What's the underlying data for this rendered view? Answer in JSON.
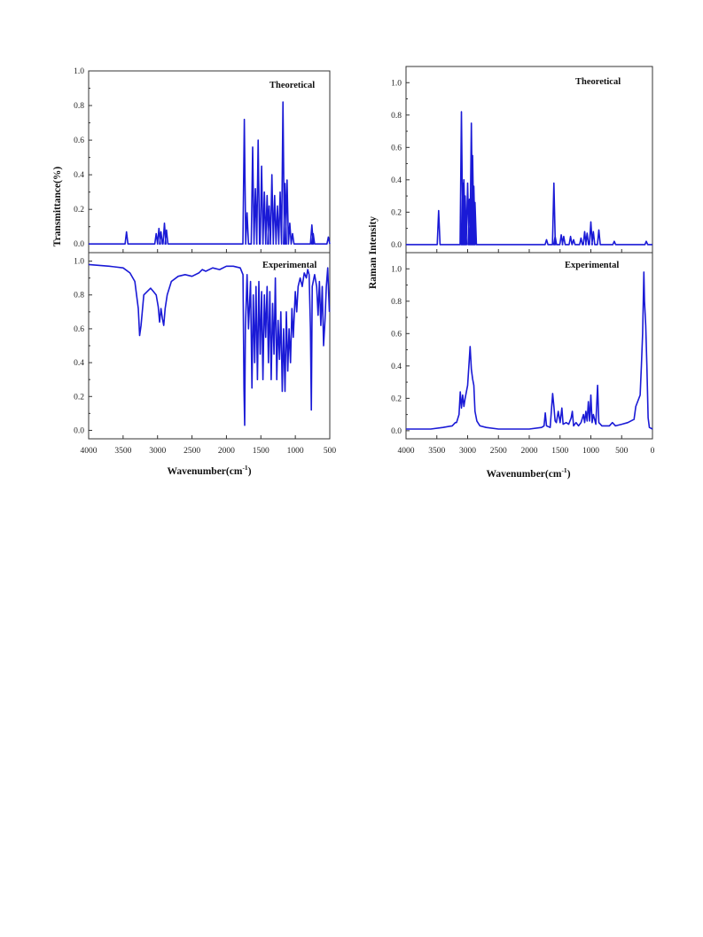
{
  "figure": {
    "left_panel": {
      "ylabel": "Transmittance(%)",
      "xlabel": "Wavenumber(cm",
      "xlabel_sup": "-1",
      "xlabel_close": ")",
      "xticks": [
        "4000",
        "3500",
        "3000",
        "2500",
        "2000",
        "1500",
        "1000",
        "500"
      ],
      "top_yticks": [
        "1.0",
        "0.8",
        "0.6",
        "0.4",
        "0.2",
        "0.0"
      ],
      "bottom_yticks": [
        "1.0",
        "0.8",
        "0.6",
        "0.4",
        "0.2",
        "0.0"
      ],
      "top_label": "Theoretical",
      "bottom_label": "Experimental"
    },
    "right_panel": {
      "ylabel": "Raman Intensity",
      "xlabel": "Wavenumber(cm",
      "xlabel_sup": "-1",
      "xlabel_close": ")",
      "xticks": [
        "4000",
        "3500",
        "3000",
        "2500",
        "2000",
        "1500",
        "1000",
        "500",
        "0"
      ],
      "top_yticks": [
        "1.0",
        "0.8",
        "0.6",
        "0.4",
        "0.2",
        "0.0"
      ],
      "bottom_yticks": [
        "1.0",
        "0.8",
        "0.6",
        "0.4",
        "0.2",
        "0.0"
      ],
      "top_label": "Theoretical",
      "bottom_label": "Experimental"
    }
  },
  "chart_data": [
    {
      "type": "line",
      "title": "",
      "panel": "IR theoretical",
      "xlabel": "Wavenumber(cm-1)",
      "ylabel": "Transmittance(%)",
      "xlim": [
        4000,
        500
      ],
      "ylim": [
        -0.05,
        1.0
      ],
      "x_reversed": true,
      "series": [
        {
          "name": "Theoretical",
          "peaks": [
            [
              3450,
              0.07
            ],
            [
              3020,
              0.06
            ],
            [
              2980,
              0.09
            ],
            [
              2950,
              0.07
            ],
            [
              2900,
              0.12
            ],
            [
              2870,
              0.08
            ],
            [
              1740,
              0.72
            ],
            [
              1700,
              0.18
            ],
            [
              1620,
              0.56
            ],
            [
              1580,
              0.32
            ],
            [
              1540,
              0.6
            ],
            [
              1490,
              0.45
            ],
            [
              1450,
              0.3
            ],
            [
              1410,
              0.28
            ],
            [
              1380,
              0.22
            ],
            [
              1340,
              0.4
            ],
            [
              1300,
              0.28
            ],
            [
              1260,
              0.22
            ],
            [
              1220,
              0.3
            ],
            [
              1180,
              0.82
            ],
            [
              1150,
              0.35
            ],
            [
              1120,
              0.37
            ],
            [
              1080,
              0.12
            ],
            [
              1040,
              0.06
            ],
            [
              760,
              0.11
            ],
            [
              740,
              0.06
            ],
            [
              520,
              0.04
            ]
          ],
          "baseline": 0.0
        }
      ]
    },
    {
      "type": "line",
      "title": "",
      "panel": "IR experimental",
      "xlabel": "Wavenumber(cm-1)",
      "ylabel": "Transmittance(%)",
      "xlim": [
        4000,
        500
      ],
      "ylim": [
        -0.05,
        1.05
      ],
      "x_reversed": true,
      "series": [
        {
          "name": "Experimental",
          "points": [
            [
              4000,
              0.98
            ],
            [
              3700,
              0.97
            ],
            [
              3500,
              0.96
            ],
            [
              3400,
              0.93
            ],
            [
              3330,
              0.88
            ],
            [
              3280,
              0.72
            ],
            [
              3260,
              0.56
            ],
            [
              3240,
              0.62
            ],
            [
              3200,
              0.8
            ],
            [
              3100,
              0.84
            ],
            [
              3060,
              0.82
            ],
            [
              3020,
              0.8
            ],
            [
              2990,
              0.73
            ],
            [
              2970,
              0.64
            ],
            [
              2950,
              0.72
            ],
            [
              2930,
              0.66
            ],
            [
              2910,
              0.62
            ],
            [
              2890,
              0.72
            ],
            [
              2860,
              0.8
            ],
            [
              2800,
              0.88
            ],
            [
              2700,
              0.91
            ],
            [
              2600,
              0.92
            ],
            [
              2500,
              0.91
            ],
            [
              2400,
              0.93
            ],
            [
              2350,
              0.95
            ],
            [
              2300,
              0.94
            ],
            [
              2200,
              0.96
            ],
            [
              2100,
              0.95
            ],
            [
              2000,
              0.97
            ],
            [
              1900,
              0.97
            ],
            [
              1800,
              0.96
            ],
            [
              1760,
              0.92
            ],
            [
              1745,
              0.25
            ],
            [
              1735,
              0.03
            ],
            [
              1725,
              0.6
            ],
            [
              1700,
              0.92
            ],
            [
              1680,
              0.6
            ],
            [
              1650,
              0.88
            ],
            [
              1630,
              0.25
            ],
            [
              1610,
              0.8
            ],
            [
              1590,
              0.4
            ],
            [
              1570,
              0.85
            ],
            [
              1550,
              0.3
            ],
            [
              1530,
              0.88
            ],
            [
              1510,
              0.45
            ],
            [
              1490,
              0.82
            ],
            [
              1470,
              0.3
            ],
            [
              1450,
              0.8
            ],
            [
              1430,
              0.55
            ],
            [
              1410,
              0.85
            ],
            [
              1390,
              0.4
            ],
            [
              1370,
              0.82
            ],
            [
              1350,
              0.3
            ],
            [
              1330,
              0.75
            ],
            [
              1310,
              0.45
            ],
            [
              1290,
              0.9
            ],
            [
              1270,
              0.3
            ],
            [
              1250,
              0.65
            ],
            [
              1230,
              0.42
            ],
            [
              1210,
              0.7
            ],
            [
              1190,
              0.23
            ],
            [
              1170,
              0.6
            ],
            [
              1150,
              0.23
            ],
            [
              1130,
              0.7
            ],
            [
              1110,
              0.35
            ],
            [
              1090,
              0.6
            ],
            [
              1070,
              0.4
            ],
            [
              1050,
              0.72
            ],
            [
              1030,
              0.55
            ],
            [
              1000,
              0.82
            ],
            [
              980,
              0.7
            ],
            [
              960,
              0.85
            ],
            [
              930,
              0.9
            ],
            [
              900,
              0.85
            ],
            [
              870,
              0.93
            ],
            [
              840,
              0.9
            ],
            [
              820,
              0.95
            ],
            [
              800,
              0.92
            ],
            [
              780,
              0.6
            ],
            [
              768,
              0.12
            ],
            [
              755,
              0.85
            ],
            [
              720,
              0.92
            ],
            [
              690,
              0.85
            ],
            [
              670,
              0.68
            ],
            [
              650,
              0.88
            ],
            [
              630,
              0.62
            ],
            [
              610,
              0.85
            ],
            [
              590,
              0.5
            ],
            [
              570,
              0.65
            ],
            [
              550,
              0.85
            ],
            [
              530,
              0.96
            ],
            [
              515,
              0.8
            ],
            [
              505,
              0.7
            ]
          ]
        }
      ]
    },
    {
      "type": "line",
      "title": "",
      "panel": "Raman theoretical",
      "xlabel": "Wavenumber(cm-1)",
      "ylabel": "Raman Intensity",
      "xlim": [
        4000,
        0
      ],
      "ylim": [
        -0.05,
        1.1
      ],
      "x_reversed": true,
      "series": [
        {
          "name": "Theoretical",
          "peaks": [
            [
              3470,
              0.21
            ],
            [
              3100,
              0.82
            ],
            [
              3080,
              0.38
            ],
            [
              3060,
              0.4
            ],
            [
              3040,
              0.3
            ],
            [
              3000,
              0.38
            ],
            [
              2970,
              0.28
            ],
            [
              2940,
              0.75
            ],
            [
              2920,
              0.55
            ],
            [
              2900,
              0.36
            ],
            [
              2880,
              0.26
            ],
            [
              1720,
              0.03
            ],
            [
              1600,
              0.38
            ],
            [
              1580,
              0.05
            ],
            [
              1480,
              0.06
            ],
            [
              1440,
              0.05
            ],
            [
              1330,
              0.05
            ],
            [
              1280,
              0.03
            ],
            [
              1160,
              0.04
            ],
            [
              1100,
              0.08
            ],
            [
              1060,
              0.07
            ],
            [
              1000,
              0.14
            ],
            [
              960,
              0.08
            ],
            [
              870,
              0.09
            ],
            [
              620,
              0.02
            ],
            [
              100,
              0.02
            ]
          ],
          "baseline": 0.0
        }
      ]
    },
    {
      "type": "line",
      "title": "",
      "panel": "Raman experimental",
      "xlabel": "Wavenumber(cm-1)",
      "ylabel": "Raman Intensity",
      "xlim": [
        4000,
        0
      ],
      "ylim": [
        -0.05,
        1.1
      ],
      "x_reversed": true,
      "series": [
        {
          "name": "Experimental",
          "points": [
            [
              4000,
              0.01
            ],
            [
              3600,
              0.01
            ],
            [
              3400,
              0.02
            ],
            [
              3250,
              0.03
            ],
            [
              3200,
              0.05
            ],
            [
              3180,
              0.05
            ],
            [
              3140,
              0.1
            ],
            [
              3120,
              0.24
            ],
            [
              3100,
              0.14
            ],
            [
              3080,
              0.22
            ],
            [
              3060,
              0.15
            ],
            [
              3040,
              0.2
            ],
            [
              3000,
              0.28
            ],
            [
              2980,
              0.4
            ],
            [
              2960,
              0.52
            ],
            [
              2940,
              0.38
            ],
            [
              2920,
              0.32
            ],
            [
              2900,
              0.28
            ],
            [
              2880,
              0.12
            ],
            [
              2850,
              0.06
            ],
            [
              2800,
              0.03
            ],
            [
              2700,
              0.02
            ],
            [
              2500,
              0.01
            ],
            [
              2000,
              0.01
            ],
            [
              1800,
              0.02
            ],
            [
              1760,
              0.03
            ],
            [
              1740,
              0.11
            ],
            [
              1720,
              0.03
            ],
            [
              1660,
              0.02
            ],
            [
              1620,
              0.23
            ],
            [
              1600,
              0.15
            ],
            [
              1580,
              0.06
            ],
            [
              1560,
              0.05
            ],
            [
              1530,
              0.12
            ],
            [
              1500,
              0.05
            ],
            [
              1470,
              0.14
            ],
            [
              1450,
              0.04
            ],
            [
              1400,
              0.05
            ],
            [
              1360,
              0.04
            ],
            [
              1320,
              0.08
            ],
            [
              1300,
              0.12
            ],
            [
              1280,
              0.03
            ],
            [
              1240,
              0.05
            ],
            [
              1200,
              0.03
            ],
            [
              1160,
              0.05
            ],
            [
              1120,
              0.1
            ],
            [
              1100,
              0.05
            ],
            [
              1080,
              0.12
            ],
            [
              1060,
              0.06
            ],
            [
              1040,
              0.18
            ],
            [
              1020,
              0.06
            ],
            [
              1000,
              0.22
            ],
            [
              980,
              0.05
            ],
            [
              960,
              0.1
            ],
            [
              920,
              0.04
            ],
            [
              890,
              0.28
            ],
            [
              870,
              0.05
            ],
            [
              820,
              0.03
            ],
            [
              700,
              0.03
            ],
            [
              650,
              0.05
            ],
            [
              600,
              0.03
            ],
            [
              500,
              0.04
            ],
            [
              400,
              0.05
            ],
            [
              300,
              0.07
            ],
            [
              270,
              0.15
            ],
            [
              240,
              0.18
            ],
            [
              200,
              0.22
            ],
            [
              180,
              0.4
            ],
            [
              160,
              0.6
            ],
            [
              140,
              0.98
            ],
            [
              130,
              0.8
            ],
            [
              110,
              0.65
            ],
            [
              90,
              0.4
            ],
            [
              70,
              0.08
            ],
            [
              50,
              0.02
            ],
            [
              0,
              0.01
            ]
          ]
        }
      ]
    }
  ]
}
